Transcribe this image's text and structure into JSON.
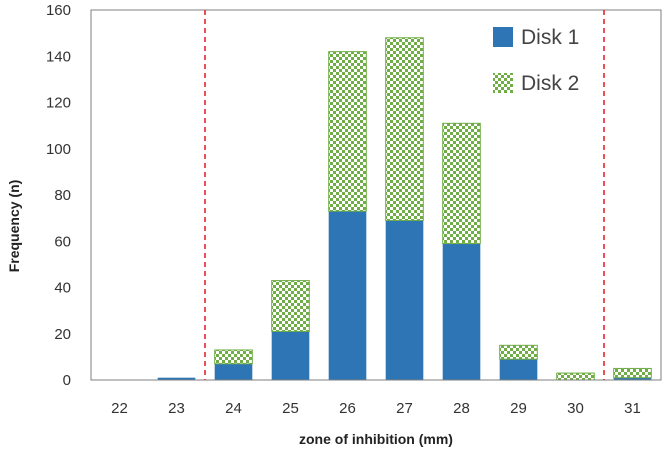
{
  "chart_data": {
    "type": "bar",
    "stacked": true,
    "categories": [
      "22",
      "23",
      "24",
      "25",
      "26",
      "27",
      "28",
      "29",
      "30",
      "31"
    ],
    "series": [
      {
        "name": "Disk 1",
        "values": [
          0,
          1,
          7,
          21,
          73,
          69,
          59,
          9,
          0,
          1
        ]
      },
      {
        "name": "Disk 2",
        "values": [
          0,
          0,
          6,
          22,
          69,
          79,
          52,
          6,
          3,
          4
        ]
      }
    ],
    "title": "",
    "xlabel": "zone of inhibition (mm)",
    "ylabel": "Frequency (n)",
    "ylim": [
      0,
      160
    ],
    "yticks": [
      0,
      20,
      40,
      60,
      80,
      100,
      120,
      140,
      160
    ],
    "grid": false,
    "legend_position": "top-right",
    "reference_lines": [
      {
        "between": [
          "23",
          "24"
        ],
        "style": "dashed",
        "color": "#e8242b"
      },
      {
        "between": [
          "30",
          "31"
        ],
        "style": "dashed",
        "color": "#e8242b"
      }
    ],
    "colors": {
      "Disk 1": "#2e75b6",
      "Disk 2": "#70ad47"
    }
  }
}
